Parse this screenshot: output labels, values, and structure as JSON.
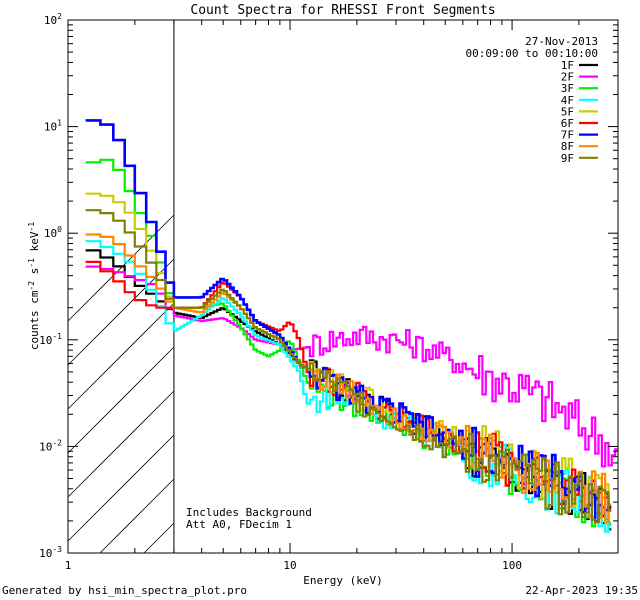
{
  "chart_data": {
    "type": "line",
    "title": "Count Spectra for RHESSI Front Segments",
    "xlabel": "Energy (keV)",
    "ylabel": "counts cm",
    "ylabel_exp1": "-2",
    "ylabel_mid": " s",
    "ylabel_exp2": "-1",
    "ylabel_end": " keV",
    "ylabel_exp3": "-1",
    "xscale": "log",
    "yscale": "log",
    "xlim": [
      1,
      300
    ],
    "ylim": [
      0.001,
      100
    ],
    "x_ticks": [
      {
        "value": 1,
        "label": "1"
      },
      {
        "value": 10,
        "label": "10"
      },
      {
        "value": 100,
        "label": "100"
      }
    ],
    "y_ticks": [
      {
        "value": 0.001,
        "base": "10",
        "exp": "-3"
      },
      {
        "value": 0.01,
        "base": "10",
        "exp": "-2"
      },
      {
        "value": 0.1,
        "base": "10",
        "exp": "-1"
      },
      {
        "value": 1,
        "base": "10",
        "exp": "0"
      },
      {
        "value": 10,
        "base": "10",
        "exp": "1"
      },
      {
        "value": 100,
        "base": "10",
        "exp": "2"
      }
    ],
    "date": "27-Nov-2013",
    "time_range": "00:09:00 to 00:10:00",
    "hatch_upper_energy": 3,
    "annotations": [
      "Includes Background",
      "Att A0, FDecim 1"
    ],
    "series": [
      {
        "name": "1F",
        "color": "#000000",
        "points": [
          [
            1.2,
            0.75
          ],
          [
            1.6,
            0.55
          ],
          [
            2.0,
            0.35
          ],
          [
            2.5,
            0.25
          ],
          [
            3.0,
            0.18
          ],
          [
            4.0,
            0.16
          ],
          [
            5.0,
            0.2
          ],
          [
            6.0,
            0.15
          ],
          [
            7.0,
            0.12
          ],
          [
            9.0,
            0.09
          ],
          [
            11,
            0.06
          ],
          [
            15,
            0.04
          ],
          [
            20,
            0.03
          ],
          [
            30,
            0.02
          ],
          [
            50,
            0.011
          ],
          [
            80,
            0.007
          ],
          [
            120,
            0.005
          ],
          [
            200,
            0.0035
          ],
          [
            280,
            0.0025
          ]
        ]
      },
      {
        "name": "2F",
        "color": "#ff00ff",
        "points": [
          [
            1.2,
            0.5
          ],
          [
            1.6,
            0.45
          ],
          [
            2.0,
            0.38
          ],
          [
            2.5,
            0.32
          ],
          [
            3.0,
            0.17
          ],
          [
            4.0,
            0.15
          ],
          [
            5.0,
            0.16
          ],
          [
            6.0,
            0.13
          ],
          [
            7.0,
            0.1
          ],
          [
            9.0,
            0.09
          ],
          [
            10,
            0.08
          ],
          [
            12,
            0.085
          ],
          [
            15,
            0.1
          ],
          [
            20,
            0.11
          ],
          [
            30,
            0.1
          ],
          [
            40,
            0.085
          ],
          [
            60,
            0.06
          ],
          [
            80,
            0.045
          ],
          [
            100,
            0.038
          ],
          [
            150,
            0.025
          ],
          [
            200,
            0.016
          ],
          [
            260,
            0.011
          ],
          [
            300,
            0.008
          ]
        ]
      },
      {
        "name": "3F",
        "color": "#00ee00",
        "points": [
          [
            1.2,
            4.5
          ],
          [
            1.6,
            5.0
          ],
          [
            2.0,
            2.0
          ],
          [
            2.5,
            0.75
          ],
          [
            3.0,
            0.2
          ],
          [
            4.0,
            0.2
          ],
          [
            5.0,
            0.22
          ],
          [
            6.0,
            0.13
          ],
          [
            7.0,
            0.08
          ],
          [
            8.0,
            0.07
          ],
          [
            9.0,
            0.08
          ],
          [
            10,
            0.1
          ],
          [
            12,
            0.04
          ],
          [
            15,
            0.03
          ],
          [
            20,
            0.025
          ],
          [
            30,
            0.018
          ],
          [
            50,
            0.01
          ],
          [
            80,
            0.007
          ],
          [
            120,
            0.005
          ],
          [
            200,
            0.0035
          ],
          [
            280,
            0.0025
          ]
        ]
      },
      {
        "name": "4F",
        "color": "#00ffff",
        "points": [
          [
            1.2,
            0.9
          ],
          [
            1.6,
            0.7
          ],
          [
            2.0,
            0.5
          ],
          [
            2.5,
            0.25
          ],
          [
            3.0,
            0.12
          ],
          [
            4.0,
            0.17
          ],
          [
            5.0,
            0.25
          ],
          [
            6.0,
            0.17
          ],
          [
            7.0,
            0.11
          ],
          [
            9.0,
            0.09
          ],
          [
            11,
            0.05
          ],
          [
            12,
            0.025
          ],
          [
            15,
            0.03
          ],
          [
            20,
            0.025
          ],
          [
            30,
            0.018
          ],
          [
            50,
            0.011
          ],
          [
            80,
            0.007
          ],
          [
            120,
            0.005
          ],
          [
            200,
            0.0035
          ],
          [
            280,
            0.0025
          ]
        ]
      },
      {
        "name": "5F",
        "color": "#cccc00",
        "points": [
          [
            1.2,
            2.4
          ],
          [
            1.6,
            2.2
          ],
          [
            2.0,
            1.4
          ],
          [
            2.5,
            0.55
          ],
          [
            3.0,
            0.2
          ],
          [
            4.0,
            0.2
          ],
          [
            5.0,
            0.3
          ],
          [
            6.0,
            0.2
          ],
          [
            7.0,
            0.13
          ],
          [
            9.0,
            0.1
          ],
          [
            11,
            0.06
          ],
          [
            15,
            0.04
          ],
          [
            20,
            0.03
          ],
          [
            30,
            0.022
          ],
          [
            50,
            0.013
          ],
          [
            80,
            0.009
          ],
          [
            120,
            0.006
          ],
          [
            200,
            0.0045
          ],
          [
            280,
            0.003
          ]
        ]
      },
      {
        "name": "6F",
        "color": "#ff0000",
        "points": [
          [
            1.2,
            0.6
          ],
          [
            1.6,
            0.4
          ],
          [
            2.0,
            0.25
          ],
          [
            2.5,
            0.2
          ],
          [
            3.0,
            0.2
          ],
          [
            4.0,
            0.2
          ],
          [
            5.0,
            0.35
          ],
          [
            6.0,
            0.25
          ],
          [
            7.0,
            0.15
          ],
          [
            9.0,
            0.12
          ],
          [
            10,
            0.15
          ],
          [
            11,
            0.1
          ],
          [
            12,
            0.05
          ],
          [
            15,
            0.04
          ],
          [
            20,
            0.03
          ],
          [
            30,
            0.02
          ],
          [
            50,
            0.012
          ],
          [
            80,
            0.008
          ],
          [
            120,
            0.006
          ],
          [
            200,
            0.004
          ],
          [
            280,
            0.003
          ]
        ]
      },
      {
        "name": "7F",
        "color": "#0000ff",
        "points": [
          [
            1.2,
            12
          ],
          [
            1.6,
            10
          ],
          [
            2.0,
            3.3
          ],
          [
            2.5,
            0.95
          ],
          [
            3.0,
            0.25
          ],
          [
            4.0,
            0.25
          ],
          [
            5.0,
            0.38
          ],
          [
            6.0,
            0.25
          ],
          [
            7.0,
            0.15
          ],
          [
            9.0,
            0.11
          ],
          [
            11,
            0.06
          ],
          [
            15,
            0.04
          ],
          [
            20,
            0.03
          ],
          [
            30,
            0.02
          ],
          [
            50,
            0.012
          ],
          [
            80,
            0.008
          ],
          [
            120,
            0.006
          ],
          [
            200,
            0.004
          ],
          [
            280,
            0.003
          ]
        ]
      },
      {
        "name": "8F",
        "color": "#ff8800",
        "points": [
          [
            1.2,
            1.0
          ],
          [
            1.6,
            0.9
          ],
          [
            2.0,
            0.55
          ],
          [
            2.5,
            0.35
          ],
          [
            3.0,
            0.2
          ],
          [
            4.0,
            0.18
          ],
          [
            5.0,
            0.28
          ],
          [
            6.0,
            0.2
          ],
          [
            7.0,
            0.13
          ],
          [
            9.0,
            0.1
          ],
          [
            11,
            0.06
          ],
          [
            15,
            0.04
          ],
          [
            20,
            0.03
          ],
          [
            30,
            0.02
          ],
          [
            50,
            0.012
          ],
          [
            80,
            0.008
          ],
          [
            120,
            0.006
          ],
          [
            200,
            0.004
          ],
          [
            280,
            0.003
          ]
        ]
      },
      {
        "name": "9F",
        "color": "#808000",
        "points": [
          [
            1.2,
            1.7
          ],
          [
            1.6,
            1.5
          ],
          [
            2.0,
            0.9
          ],
          [
            2.5,
            0.45
          ],
          [
            3.0,
            0.2
          ],
          [
            4.0,
            0.2
          ],
          [
            5.0,
            0.3
          ],
          [
            6.0,
            0.2
          ],
          [
            7.0,
            0.13
          ],
          [
            9.0,
            0.1
          ],
          [
            11,
            0.06
          ],
          [
            15,
            0.04
          ],
          [
            20,
            0.028
          ],
          [
            30,
            0.018
          ],
          [
            50,
            0.01
          ],
          [
            80,
            0.007
          ],
          [
            120,
            0.005
          ],
          [
            200,
            0.0035
          ],
          [
            280,
            0.0025
          ]
        ]
      }
    ]
  },
  "footer": {
    "generated_by": "Generated by hsi_min_spectra_plot.pro",
    "timestamp": "22-Apr-2023 19:35"
  }
}
